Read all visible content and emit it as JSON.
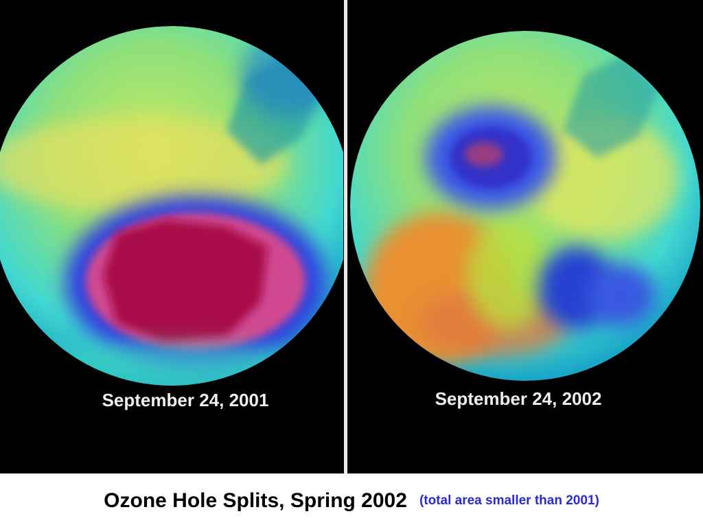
{
  "panels": [
    {
      "label": "September 24, 2001"
    },
    {
      "label": "September 24, 2002"
    }
  ],
  "caption": {
    "title": "Ozone Hole Splits, Spring 2002",
    "note": "(total area smaller than 2001)"
  }
}
